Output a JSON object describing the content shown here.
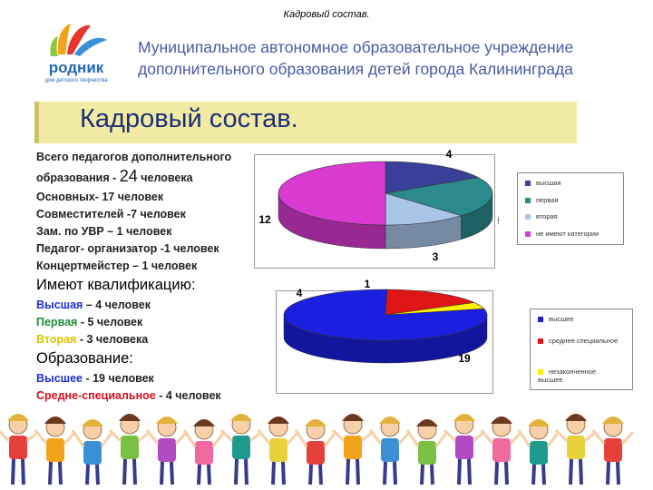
{
  "header": {
    "caption": "Кадровый состав.",
    "logo_text": "родник",
    "logo_subtitle": "дом детского творчества",
    "org_line1": "Муниципальное автономное образовательное учреждение",
    "org_line2": "дополнительного образования детей города Калининграда"
  },
  "title": "Кадровый состав.",
  "staff": {
    "total_line1": "Всего педагогов дополнительного",
    "total_prefix": "образования - ",
    "total_count": "24",
    "total_suffix": " человека",
    "lines": [
      "Основных- 17 человек",
      "Совместителей -7 человек",
      "Зам. по УВР – 1 человек",
      "Педагог- организатор -1 человек",
      "Концертмейстер – 1 человек"
    ]
  },
  "qualification": {
    "heading": "Имеют квалификацию:",
    "highest_label": "Высшая",
    "highest_rest": " – 4 человек",
    "first_label": "Первая",
    "first_rest": " - 5 человек",
    "second_label": "Вторая",
    "second_rest": " - 3 человека"
  },
  "education": {
    "heading": "Образование:",
    "higher_label": "Высшее",
    "higher_rest": " - 19 человек",
    "special_label": "Средне-специальное",
    "special_rest": " - 4 человек"
  },
  "chart_data": [
    {
      "type": "pie",
      "categories": [
        "высшая",
        "первая",
        "вторая",
        "не имеют категории"
      ],
      "values": [
        4,
        5,
        3,
        12
      ],
      "colors": [
        "#3a3f9a",
        "#2a8a8c",
        "#a9c5e8",
        "#d93bd0"
      ],
      "legend": "right"
    },
    {
      "type": "pie",
      "categories": [
        "высшее",
        "среднее специальное",
        "незаконченное высшее"
      ],
      "values": [
        19,
        4,
        1
      ],
      "colors": [
        "#1a1fe0",
        "#e01515",
        "#fff000"
      ],
      "legend": "right"
    }
  ]
}
